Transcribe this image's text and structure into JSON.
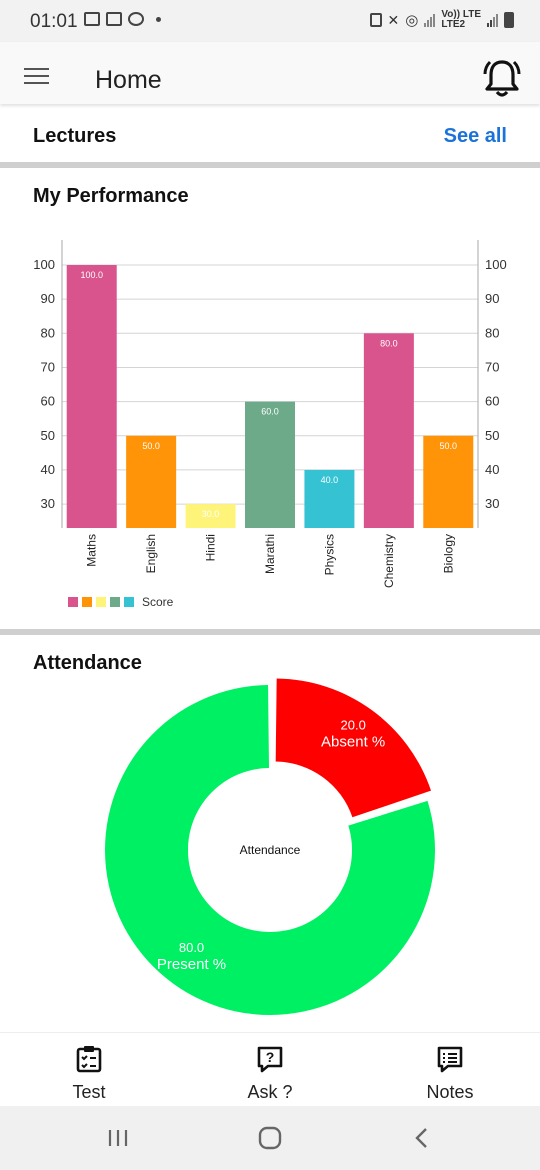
{
  "status_bar": {
    "time": "01:01",
    "network_label_1": "Vo)) LTE",
    "network_label_2": "LTE2"
  },
  "app_bar": {
    "title": "Home"
  },
  "lectures": {
    "title": "Lectures",
    "see_all": "See all"
  },
  "performance": {
    "title": "My Performance"
  },
  "chart_data": {
    "type": "bar",
    "categories": [
      "Maths",
      "English",
      "Hindi",
      "Marathi",
      "Physics",
      "Chemistry",
      "Biology"
    ],
    "series": [
      {
        "name": "Score",
        "values": [
          100.0,
          50.0,
          30.0,
          60.0,
          40.0,
          80.0,
          50.0
        ]
      }
    ],
    "data_labels": [
      "100.0",
      "50.0",
      "30.0",
      "60.0",
      "40.0",
      "80.0",
      "50.0"
    ],
    "colors": [
      "#d9538c",
      "#ff9408",
      "#fff47a",
      "#6daa8a",
      "#35c3d3",
      "#d9538c",
      "#ff9408"
    ],
    "ylim": [
      23,
      100
    ],
    "yticks": [
      "30",
      "40",
      "50",
      "60",
      "70",
      "80",
      "90",
      "100"
    ],
    "grid": true,
    "legend_position": "bottom-left"
  },
  "attendance": {
    "title": "Attendance",
    "center_label": "Attendance",
    "chart_data": {
      "type": "pie",
      "slices": [
        {
          "value_label": "20.0",
          "label": "Absent %",
          "value": 20.0,
          "color": "#ff0000"
        },
        {
          "value_label": "80.0",
          "label": "Present %",
          "value": 80.0,
          "color": "#00f064"
        }
      ]
    }
  },
  "bottom_nav": [
    {
      "label": "Test",
      "icon": "test-clipboard-icon"
    },
    {
      "label": "Ask ?",
      "icon": "ask-question-icon"
    },
    {
      "label": "Notes",
      "icon": "notes-list-icon"
    }
  ]
}
